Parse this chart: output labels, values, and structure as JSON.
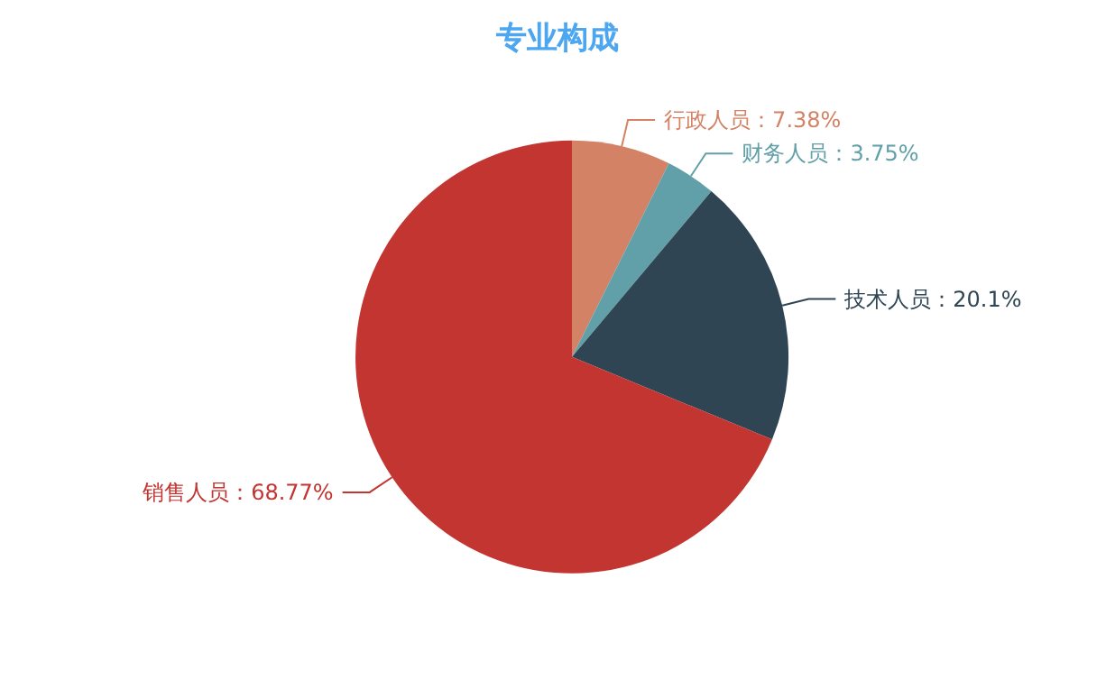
{
  "chart_data": {
    "type": "pie",
    "title": "专业构成",
    "categories": [
      "行政人员",
      "财务人员",
      "技术人员",
      "销售人员"
    ],
    "values": [
      7.38,
      3.75,
      20.1,
      68.77
    ],
    "value_labels": [
      "7.38%",
      "3.75%",
      "20.1%",
      "68.77%"
    ],
    "colors": [
      "#d48265",
      "#61a0a8",
      "#2f4554",
      "#c23531"
    ],
    "legend": false
  }
}
